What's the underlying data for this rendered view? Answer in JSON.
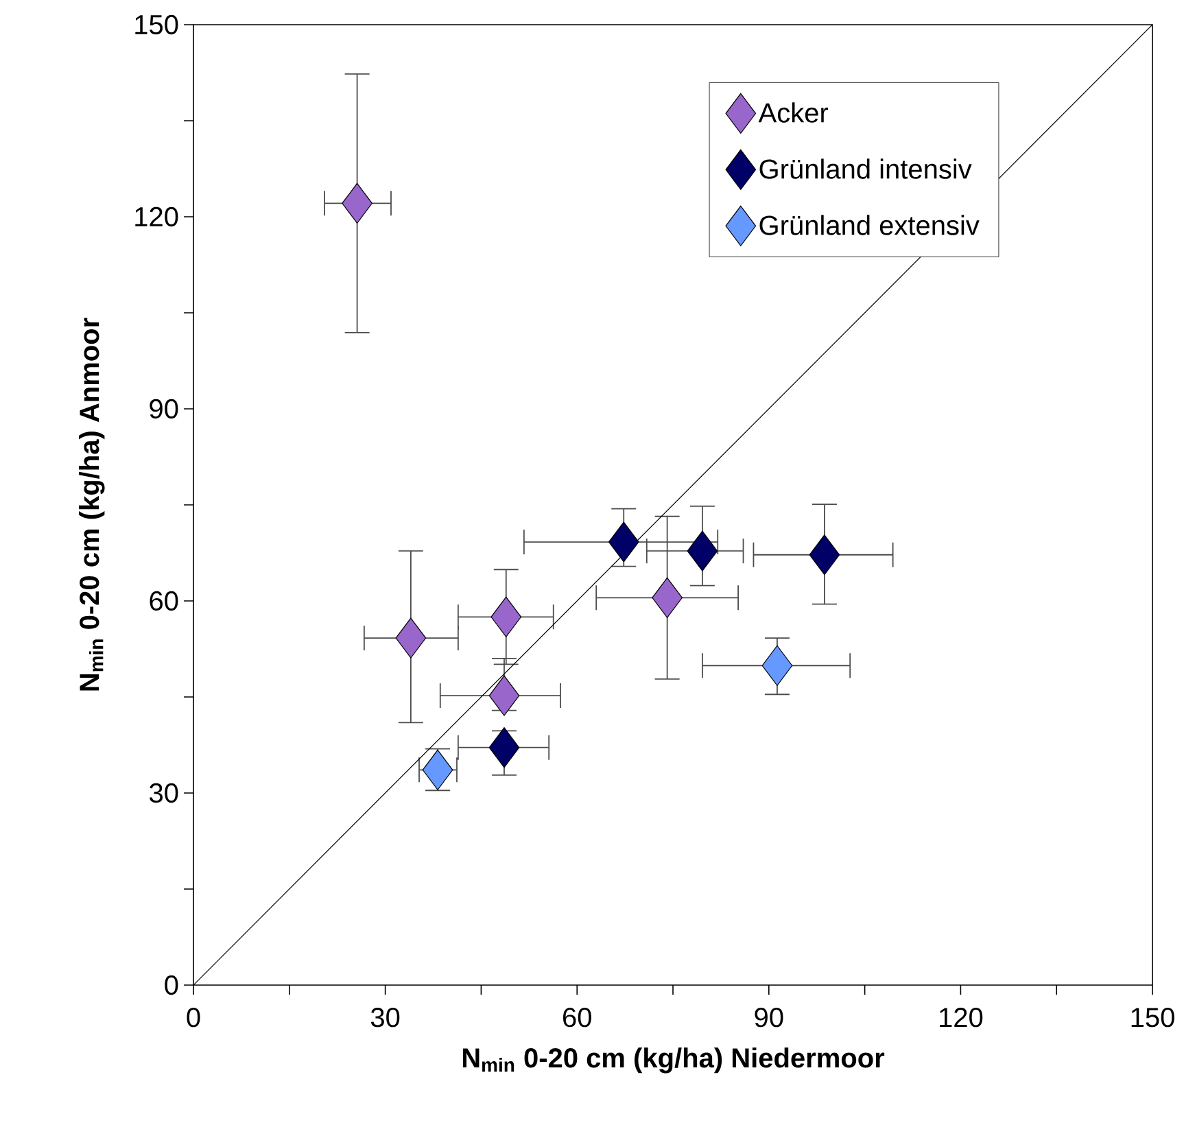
{
  "chart_data": {
    "type": "scatter",
    "xlabel": "N$_{min}$ 0-20 cm (kg/ha) Niedermoor",
    "ylabel": "N$_{min}$ 0-20 cm (kg/ha) Anmoor",
    "xlim": [
      0,
      150
    ],
    "ylim": [
      0,
      150
    ],
    "xticks": [
      0,
      {
        "value": 15,
        "label": null
      },
      30,
      {
        "value": 45,
        "label": null
      },
      60,
      {
        "value": 75,
        "label": null
      },
      90,
      {
        "value": 105,
        "label": null
      },
      120,
      {
        "value": 135,
        "label": null
      },
      150
    ],
    "yticks": [
      0,
      {
        "value": 15,
        "label": null
      },
      30,
      {
        "value": 45,
        "label": null
      },
      60,
      {
        "value": 75,
        "label": null
      },
      90,
      {
        "value": 105,
        "label": null
      },
      120,
      {
        "value": 135,
        "label": null
      },
      150
    ],
    "grid": false,
    "legend": "top right",
    "marker": "diamond",
    "series": [
      {
        "name": "Acker",
        "color": "#9966cc",
        "x": [
          25.6,
          34.0,
          48.9,
          48.6,
          74.1
        ],
        "values": [
          122.1,
          54.2,
          57.5,
          45.2,
          60.5
        ],
        "xerrors": [
          [
            20.5,
            30.9
          ],
          [
            26.7,
            41.4
          ],
          [
            41.4,
            56.3
          ],
          [
            38.6,
            57.4
          ],
          [
            63.0,
            85.2
          ]
        ],
        "errors": [
          [
            101.9,
            142.3
          ],
          [
            41.0,
            67.8
          ],
          [
            50.1,
            64.9
          ],
          [
            42.9,
            51.0
          ],
          [
            47.8,
            73.2
          ]
        ]
      },
      {
        "name": "Grünland intensiv",
        "color": "#000066",
        "x": [
          67.3,
          79.6,
          98.7,
          48.6
        ],
        "values": [
          69.2,
          67.8,
          67.2,
          37.1
        ],
        "xerrors": [
          [
            51.7,
            82.0
          ],
          [
            70.9,
            86.0
          ],
          [
            87.6,
            109.4
          ],
          [
            41.4,
            55.6
          ]
        ],
        "errors": [
          [
            65.4,
            74.4
          ],
          [
            62.4,
            74.8
          ],
          [
            59.5,
            75.1
          ],
          [
            32.8,
            39.7
          ]
        ]
      },
      {
        "name": "Grünland extensiv",
        "color": "#6699ff",
        "x": [
          38.2,
          91.3
        ],
        "values": [
          33.6,
          49.9
        ],
        "xerrors": [
          [
            35.3,
            41.2
          ],
          [
            79.6,
            102.7
          ]
        ],
        "errors": [
          [
            30.4,
            36.9
          ],
          [
            45.4,
            54.2
          ]
        ]
      },
      {
        "type": "line",
        "color": "#000000",
        "marker": "none",
        "x": [
          0,
          150
        ],
        "values": [
          0,
          150
        ]
      }
    ]
  }
}
